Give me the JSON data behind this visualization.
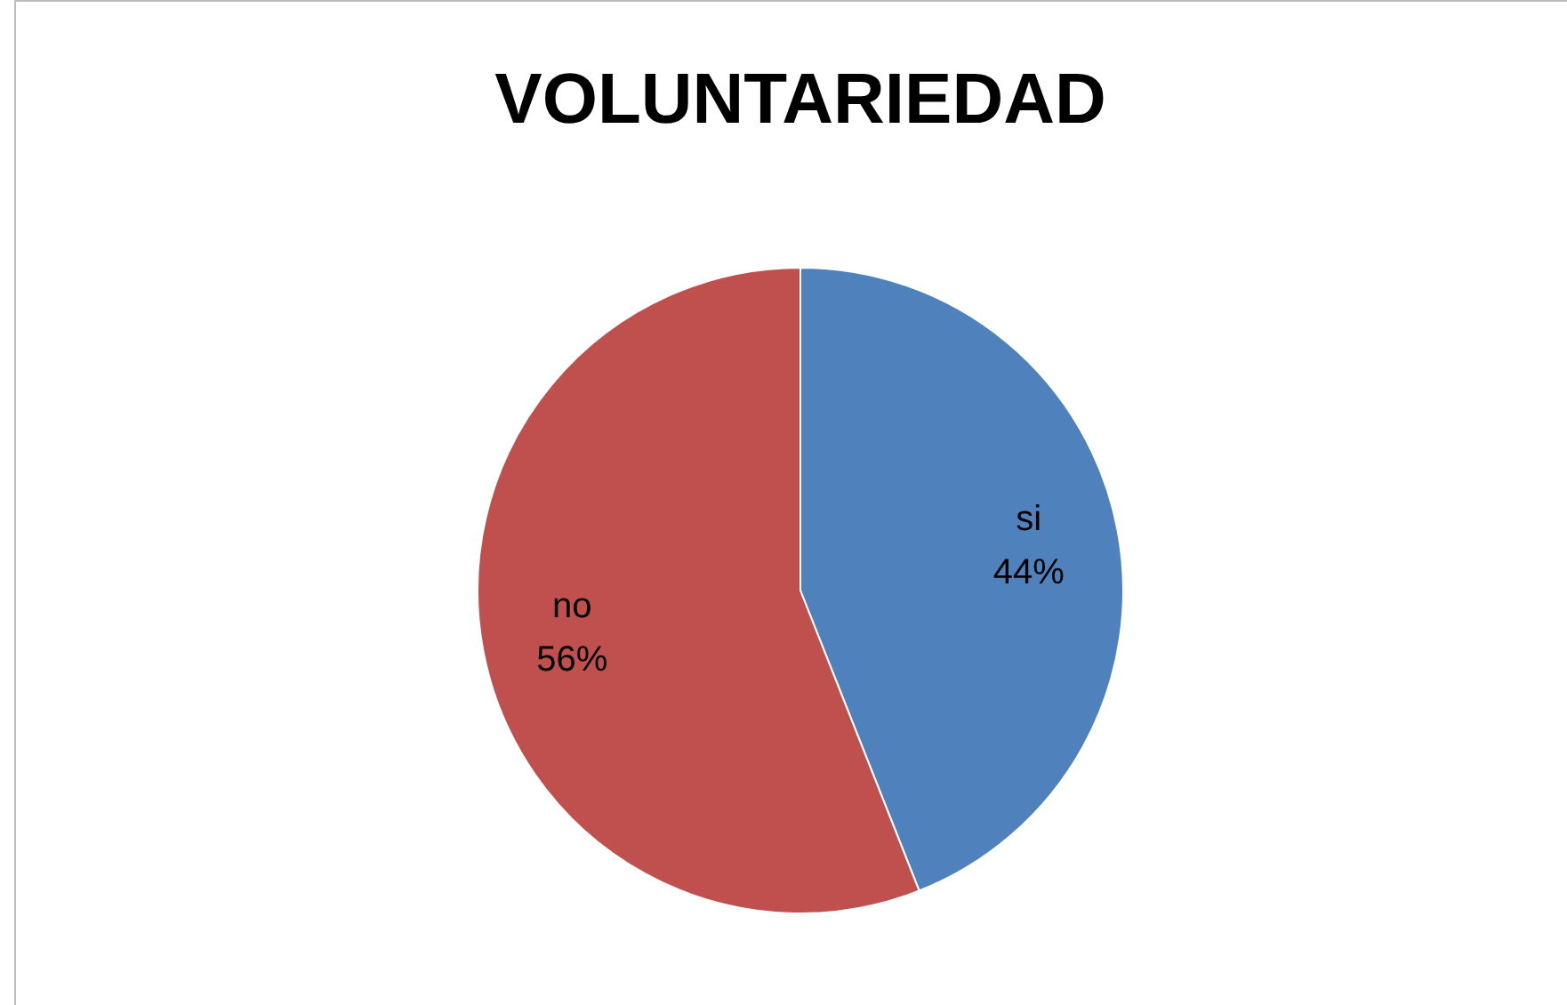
{
  "chart_data": {
    "type": "pie",
    "title": "VOLUNTARIEDAD",
    "categories": [
      "si",
      "no"
    ],
    "values": [
      44,
      56
    ],
    "colors": [
      "#4f81bd",
      "#c0504d"
    ],
    "value_labels": [
      "44%",
      "56%"
    ],
    "legend": false
  }
}
